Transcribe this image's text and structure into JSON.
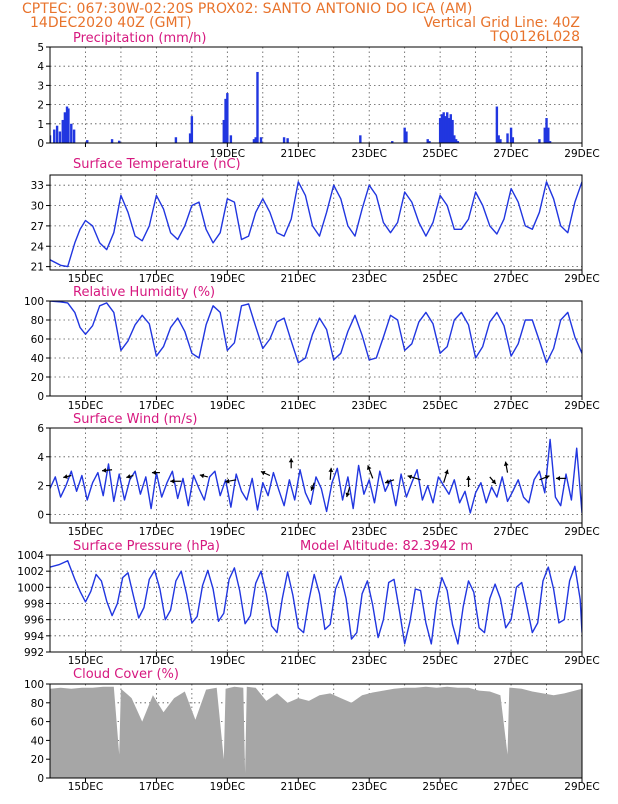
{
  "header": {
    "line1_left": "CPTEC:   067:30W-02:20S   PROX02: SANTO ANTONIO DO ICA (AM)",
    "line2_left": "14DEC2020 40Z (GMT)",
    "line2_right": "Vertical Grid Line: 40Z",
    "line3_right": "TQ0126L028"
  },
  "colors": {
    "header": "#e8732c",
    "title": "#d6187f",
    "series": "#2136e0",
    "cloud": "#a6a6a6"
  },
  "x_axis": {
    "start": "2020-12-14",
    "end": "2020-12-29",
    "tick_labels": [
      "15DEC",
      "17DEC",
      "19DEC",
      "21DEC",
      "23DEC",
      "25DEC",
      "27DEC",
      "29DEC"
    ],
    "gridline_dates": [
      "15DEC",
      "16DEC",
      "17DEC",
      "18DEC",
      "19DEC",
      "20DEC",
      "21DEC",
      "22DEC",
      "23DEC",
      "24DEC",
      "25DEC",
      "26DEC",
      "27DEC",
      "28DEC"
    ]
  },
  "chart_data": [
    {
      "type": "bar",
      "title": "Precipitation (mm/h)",
      "ylim": [
        0,
        5
      ],
      "yticks": [
        0,
        1,
        2,
        3,
        4,
        5
      ],
      "grid": true,
      "x": [
        "14DEC",
        "14.12",
        "14.2",
        "14.28",
        "14.36",
        "14.42",
        "14.48",
        "14.52",
        "14.6",
        "14.68",
        "15.05",
        "15.75",
        "15.95",
        "17.55",
        "17.95",
        "18.0",
        "18.9",
        "18.95",
        "19.0",
        "19.1",
        "19.75",
        "19.8",
        "19.85",
        "19.95",
        "20.6",
        "20.7",
        "22.75",
        "23.65",
        "24.0",
        "24.05",
        "24.65",
        "24.7",
        "25.0",
        "25.05",
        "25.1",
        "25.15",
        "25.2",
        "25.25",
        "25.3",
        "25.35",
        "25.4",
        "25.45",
        "25.5",
        "26.6",
        "26.65",
        "26.7",
        "26.9",
        "27.0",
        "27.05",
        "27.8",
        "27.95",
        "28.0",
        "28.05",
        "28.1"
      ],
      "values": [
        0.4,
        0.7,
        0.9,
        0.6,
        1.2,
        1.6,
        1.9,
        1.8,
        1.0,
        0.7,
        0.15,
        0.2,
        0.12,
        0.3,
        0.5,
        1.4,
        1.2,
        2.3,
        2.6,
        0.4,
        0.2,
        0.3,
        3.7,
        0.3,
        0.3,
        0.25,
        0.4,
        0.1,
        0.8,
        0.6,
        0.2,
        0.1,
        1.3,
        1.5,
        1.6,
        1.4,
        1.6,
        1.3,
        1.5,
        1.2,
        0.4,
        0.2,
        0.1,
        1.9,
        0.4,
        0.2,
        0.5,
        0.8,
        0.3,
        0.2,
        0.8,
        1.3,
        0.8,
        0.1
      ],
      "series_color": "#2136e0"
    },
    {
      "type": "line",
      "title": "Surface Temperature (nC)",
      "ylim": [
        20.5,
        34.5
      ],
      "yticks": [
        21,
        24,
        27,
        30,
        33
      ],
      "grid": true,
      "x_days": [
        14.0,
        14.3,
        14.5,
        14.7,
        14.85,
        15.0,
        15.2,
        15.4,
        15.6,
        15.8,
        16.0,
        16.2,
        16.4,
        16.6,
        16.8,
        17.0,
        17.2,
        17.4,
        17.6,
        17.8,
        18.0,
        18.2,
        18.4,
        18.6,
        18.8,
        19.0,
        19.2,
        19.4,
        19.6,
        19.8,
        20.0,
        20.2,
        20.4,
        20.6,
        20.8,
        21.0,
        21.2,
        21.4,
        21.6,
        21.8,
        22.0,
        22.2,
        22.4,
        22.6,
        22.8,
        23.0,
        23.2,
        23.4,
        23.6,
        23.8,
        24.0,
        24.2,
        24.4,
        24.6,
        24.8,
        25.0,
        25.2,
        25.4,
        25.6,
        25.8,
        26.0,
        26.2,
        26.4,
        26.6,
        26.8,
        27.0,
        27.2,
        27.4,
        27.6,
        27.8,
        28.0,
        28.2,
        28.4,
        28.6,
        28.8,
        29.0
      ],
      "values": [
        22.0,
        21.2,
        21.0,
        24.5,
        26.5,
        27.8,
        27.0,
        24.5,
        23.5,
        26.0,
        31.5,
        29.0,
        25.5,
        24.8,
        27.0,
        31.5,
        29.5,
        26.0,
        25.0,
        27.0,
        30.0,
        30.5,
        26.5,
        24.5,
        26.0,
        31.0,
        30.5,
        25.0,
        25.5,
        29.0,
        31.0,
        29.0,
        26.0,
        25.5,
        28.0,
        33.5,
        31.5,
        27.0,
        25.5,
        29.0,
        33.0,
        31.0,
        27.0,
        25.5,
        29.5,
        33.0,
        31.5,
        27.5,
        26.0,
        27.5,
        32.0,
        30.5,
        27.5,
        25.5,
        27.5,
        31.5,
        30.0,
        26.5,
        26.5,
        28.0,
        32.0,
        30.0,
        27.0,
        25.8,
        28.0,
        32.5,
        30.5,
        27.0,
        26.5,
        29.0,
        33.5,
        31.0,
        27.0,
        26.0,
        30.5,
        33.5
      ],
      "series_color": "#2136e0"
    },
    {
      "type": "line",
      "title": "Relative Humidity (%)",
      "ylim": [
        0,
        100
      ],
      "yticks": [
        0,
        20,
        40,
        60,
        80,
        100
      ],
      "grid": true,
      "x_days": [
        14.0,
        14.3,
        14.5,
        14.7,
        14.85,
        15.0,
        15.2,
        15.4,
        15.6,
        15.8,
        16.0,
        16.2,
        16.4,
        16.6,
        16.8,
        17.0,
        17.2,
        17.4,
        17.6,
        17.8,
        18.0,
        18.2,
        18.4,
        18.6,
        18.8,
        19.0,
        19.2,
        19.4,
        19.6,
        19.8,
        20.0,
        20.2,
        20.4,
        20.6,
        20.8,
        21.0,
        21.2,
        21.4,
        21.6,
        21.8,
        22.0,
        22.2,
        22.4,
        22.6,
        22.8,
        23.0,
        23.2,
        23.4,
        23.6,
        23.8,
        24.0,
        24.2,
        24.4,
        24.6,
        24.8,
        25.0,
        25.2,
        25.4,
        25.6,
        25.8,
        26.0,
        26.2,
        26.4,
        26.6,
        26.8,
        27.0,
        27.2,
        27.4,
        27.6,
        27.8,
        28.0,
        28.2,
        28.4,
        28.6,
        28.8,
        29.0
      ],
      "values": [
        100,
        99,
        98,
        88,
        72,
        65,
        74,
        95,
        98,
        88,
        48,
        58,
        75,
        85,
        76,
        42,
        52,
        72,
        82,
        68,
        45,
        40,
        75,
        95,
        88,
        48,
        56,
        95,
        97,
        73,
        50,
        60,
        78,
        82,
        58,
        35,
        40,
        65,
        82,
        70,
        38,
        45,
        68,
        85,
        64,
        38,
        40,
        62,
        85,
        80,
        48,
        55,
        78,
        88,
        76,
        45,
        52,
        80,
        88,
        75,
        40,
        52,
        78,
        88,
        74,
        42,
        55,
        80,
        80,
        58,
        35,
        50,
        80,
        88,
        62,
        45
      ],
      "series_color": "#2136e0"
    },
    {
      "type": "line",
      "title": "Surface Wind (m/s)",
      "ylim": [
        -0.6,
        6
      ],
      "yticks": [
        0,
        2,
        4,
        6
      ],
      "grid": true,
      "x_days": [
        14.0,
        14.15,
        14.3,
        14.45,
        14.6,
        14.75,
        14.9,
        15.05,
        15.2,
        15.35,
        15.5,
        15.65,
        15.8,
        15.95,
        16.1,
        16.25,
        16.4,
        16.55,
        16.7,
        16.85,
        17.0,
        17.15,
        17.3,
        17.45,
        17.6,
        17.75,
        17.9,
        18.05,
        18.2,
        18.35,
        18.5,
        18.65,
        18.8,
        18.95,
        19.1,
        19.25,
        19.4,
        19.55,
        19.7,
        19.85,
        20.0,
        20.15,
        20.3,
        20.45,
        20.6,
        20.75,
        20.9,
        21.05,
        21.2,
        21.35,
        21.5,
        21.65,
        21.8,
        21.95,
        22.1,
        22.25,
        22.4,
        22.55,
        22.7,
        22.85,
        23.0,
        23.15,
        23.3,
        23.45,
        23.6,
        23.75,
        23.9,
        24.05,
        24.2,
        24.35,
        24.5,
        24.65,
        24.8,
        24.95,
        25.1,
        25.25,
        25.4,
        25.55,
        25.7,
        25.85,
        26.0,
        26.15,
        26.3,
        26.45,
        26.6,
        26.75,
        26.9,
        27.05,
        27.2,
        27.35,
        27.5,
        27.65,
        27.8,
        27.95,
        28.1,
        28.25,
        28.4,
        28.55,
        28.7,
        28.85,
        29.0
      ],
      "values": [
        1.8,
        2.6,
        1.2,
        2.0,
        3.0,
        1.6,
        2.7,
        1.0,
        2.2,
        2.9,
        1.3,
        3.5,
        0.9,
        2.8,
        1.0,
        2.4,
        3.0,
        1.4,
        2.6,
        0.4,
        2.9,
        1.2,
        2.2,
        3.0,
        1.1,
        2.5,
        0.6,
        2.7,
        1.8,
        1.0,
        2.6,
        3.0,
        1.3,
        2.4,
        0.5,
        2.8,
        1.6,
        1.0,
        2.5,
        0.3,
        2.2,
        1.3,
        2.9,
        1.7,
        0.6,
        2.4,
        1.0,
        3.1,
        1.5,
        0.7,
        2.6,
        1.8,
        0.2,
        2.2,
        3.2,
        1.0,
        2.6,
        0.4,
        3.4,
        1.4,
        2.4,
        0.8,
        3.0,
        1.6,
        2.4,
        0.6,
        2.8,
        1.2,
        2.2,
        3.1,
        1.0,
        2.0,
        0.8,
        2.6,
        2.0,
        1.4,
        2.4,
        0.8,
        1.6,
        0.1,
        1.5,
        2.2,
        0.8,
        1.9,
        1.2,
        2.6,
        0.9,
        1.6,
        2.4,
        1.2,
        0.8,
        2.4,
        3.0,
        1.5,
        5.2,
        1.2,
        0.6,
        2.8,
        1.0,
        4.6,
        0.1
      ],
      "arrows": [
        {
          "x": 14.6,
          "y": 2.7,
          "dx": -8,
          "dy": 2
        },
        {
          "x": 15.75,
          "y": 3.1,
          "dx": -10,
          "dy": 1
        },
        {
          "x": 16.35,
          "y": 2.7,
          "dx": -7,
          "dy": 2
        },
        {
          "x": 17.1,
          "y": 2.9,
          "dx": -8,
          "dy": 0
        },
        {
          "x": 17.7,
          "y": 2.3,
          "dx": -11,
          "dy": 0
        },
        {
          "x": 18.45,
          "y": 2.6,
          "dx": -8,
          "dy": -2
        },
        {
          "x": 19.25,
          "y": 2.4,
          "dx": -11,
          "dy": 2
        },
        {
          "x": 20.2,
          "y": 2.7,
          "dx": -9,
          "dy": -4
        },
        {
          "x": 20.8,
          "y": 3.2,
          "dx": 0,
          "dy": -10
        },
        {
          "x": 21.45,
          "y": 2.2,
          "dx": -3,
          "dy": 8
        },
        {
          "x": 21.9,
          "y": 2.4,
          "dx": 1,
          "dy": -12
        },
        {
          "x": 22.45,
          "y": 1.9,
          "dx": -3,
          "dy": 10
        },
        {
          "x": 23.1,
          "y": 2.5,
          "dx": -5,
          "dy": -13
        },
        {
          "x": 23.7,
          "y": 2.4,
          "dx": -9,
          "dy": 3
        },
        {
          "x": 24.45,
          "y": 2.4,
          "dx": -13,
          "dy": -4
        },
        {
          "x": 25.1,
          "y": 2.2,
          "dx": 4,
          "dy": -13
        },
        {
          "x": 25.8,
          "y": 1.9,
          "dx": 0,
          "dy": -11
        },
        {
          "x": 26.4,
          "y": 2.6,
          "dx": 6,
          "dy": 7
        },
        {
          "x": 26.9,
          "y": 2.9,
          "dx": -2,
          "dy": -11
        },
        {
          "x": 27.8,
          "y": 2.4,
          "dx": 10,
          "dy": -4
        },
        {
          "x": 28.55,
          "y": 2.5,
          "dx": -10,
          "dy": 0
        }
      ],
      "series_color": "#2136e0"
    },
    {
      "type": "line",
      "title": "Surface Pressure (hPa)",
      "annotation": "Model Altitude: 82.3942 m",
      "ylim": [
        992,
        1004
      ],
      "yticks": [
        992,
        994,
        996,
        998,
        1000,
        1002,
        1004
      ],
      "grid": true,
      "x_days": [
        14.0,
        14.25,
        14.5,
        14.7,
        14.85,
        15.0,
        15.15,
        15.3,
        15.45,
        15.6,
        15.75,
        15.9,
        16.05,
        16.2,
        16.35,
        16.5,
        16.65,
        16.8,
        16.95,
        17.1,
        17.25,
        17.4,
        17.55,
        17.7,
        17.85,
        18.0,
        18.15,
        18.3,
        18.45,
        18.6,
        18.75,
        18.9,
        19.05,
        19.2,
        19.35,
        19.5,
        19.65,
        19.8,
        19.95,
        20.1,
        20.25,
        20.4,
        20.55,
        20.7,
        20.85,
        21.0,
        21.15,
        21.3,
        21.45,
        21.6,
        21.75,
        21.9,
        22.05,
        22.2,
        22.35,
        22.5,
        22.65,
        22.8,
        22.95,
        23.1,
        23.25,
        23.4,
        23.55,
        23.7,
        23.85,
        24.0,
        24.15,
        24.3,
        24.45,
        24.6,
        24.75,
        24.9,
        25.05,
        25.2,
        25.35,
        25.5,
        25.65,
        25.8,
        25.95,
        26.1,
        26.25,
        26.4,
        26.55,
        26.7,
        26.85,
        27.0,
        27.15,
        27.3,
        27.45,
        27.6,
        27.75,
        27.9,
        28.05,
        28.2,
        28.35,
        28.5,
        28.65,
        28.8,
        28.95,
        29.0
      ],
      "values": [
        1002.5,
        1002.8,
        1003.3,
        1001.0,
        999.5,
        998.2,
        999.5,
        1001.6,
        1000.8,
        998.3,
        996.5,
        998.0,
        1001.2,
        1001.8,
        999.0,
        996.2,
        997.5,
        1001.0,
        1002.1,
        999.8,
        996.0,
        997.2,
        1000.8,
        1002.0,
        999.2,
        995.6,
        996.4,
        1000.2,
        1002.1,
        999.8,
        995.8,
        996.8,
        1001.0,
        1002.4,
        999.6,
        995.5,
        996.5,
        1000.5,
        1002.0,
        999.2,
        995.2,
        994.4,
        998.6,
        1001.9,
        999.0,
        995.0,
        994.4,
        998.4,
        1001.6,
        999.2,
        994.8,
        995.4,
        999.8,
        1001.4,
        998.6,
        993.6,
        994.4,
        999.2,
        1000.8,
        997.8,
        993.8,
        996.0,
        1000.6,
        1001.0,
        997.2,
        993.0,
        995.8,
        999.8,
        999.6,
        995.6,
        993.0,
        998.2,
        1001.2,
        999.6,
        995.4,
        993.0,
        997.6,
        1000.8,
        999.4,
        995.0,
        994.4,
        998.6,
        1000.4,
        998.6,
        995.0,
        996.0,
        1000.0,
        1000.6,
        997.6,
        994.4,
        995.6,
        1000.8,
        1002.5,
        999.8,
        995.6,
        996.0,
        1000.8,
        1002.6,
        998.5,
        994.4
      ],
      "series_color": "#2136e0"
    },
    {
      "type": "area",
      "title": "Cloud Cover (%)",
      "ylim": [
        0,
        100
      ],
      "yticks": [
        0,
        20,
        40,
        60,
        80,
        100
      ],
      "grid": true,
      "x_days": [
        14.0,
        14.3,
        14.6,
        14.9,
        15.2,
        15.5,
        15.8,
        15.95,
        16.0,
        16.3,
        16.6,
        16.9,
        17.2,
        17.5,
        17.8,
        18.1,
        18.4,
        18.7,
        18.9,
        18.95,
        19.2,
        19.45,
        19.5,
        19.55,
        19.8,
        20.1,
        20.4,
        20.7,
        21.0,
        21.3,
        21.6,
        21.9,
        22.2,
        22.5,
        22.8,
        23.1,
        23.4,
        23.7,
        24.0,
        24.3,
        24.6,
        24.9,
        25.2,
        25.5,
        25.8,
        26.1,
        26.4,
        26.7,
        26.9,
        26.95,
        27.0,
        27.3,
        27.6,
        27.9,
        28.2,
        28.5,
        28.8,
        29.0
      ],
      "values": [
        95,
        96,
        95,
        96,
        96,
        97,
        97,
        25,
        95,
        85,
        60,
        88,
        70,
        85,
        92,
        62,
        94,
        96,
        20,
        95,
        97,
        96,
        5,
        97,
        96,
        82,
        90,
        80,
        85,
        82,
        88,
        90,
        85,
        80,
        88,
        91,
        93,
        95,
        96,
        96,
        97,
        96,
        97,
        96,
        96,
        93,
        92,
        88,
        25,
        96,
        96,
        95,
        92,
        90,
        88,
        90,
        93,
        95
      ],
      "series_color": "#a6a6a6"
    }
  ]
}
